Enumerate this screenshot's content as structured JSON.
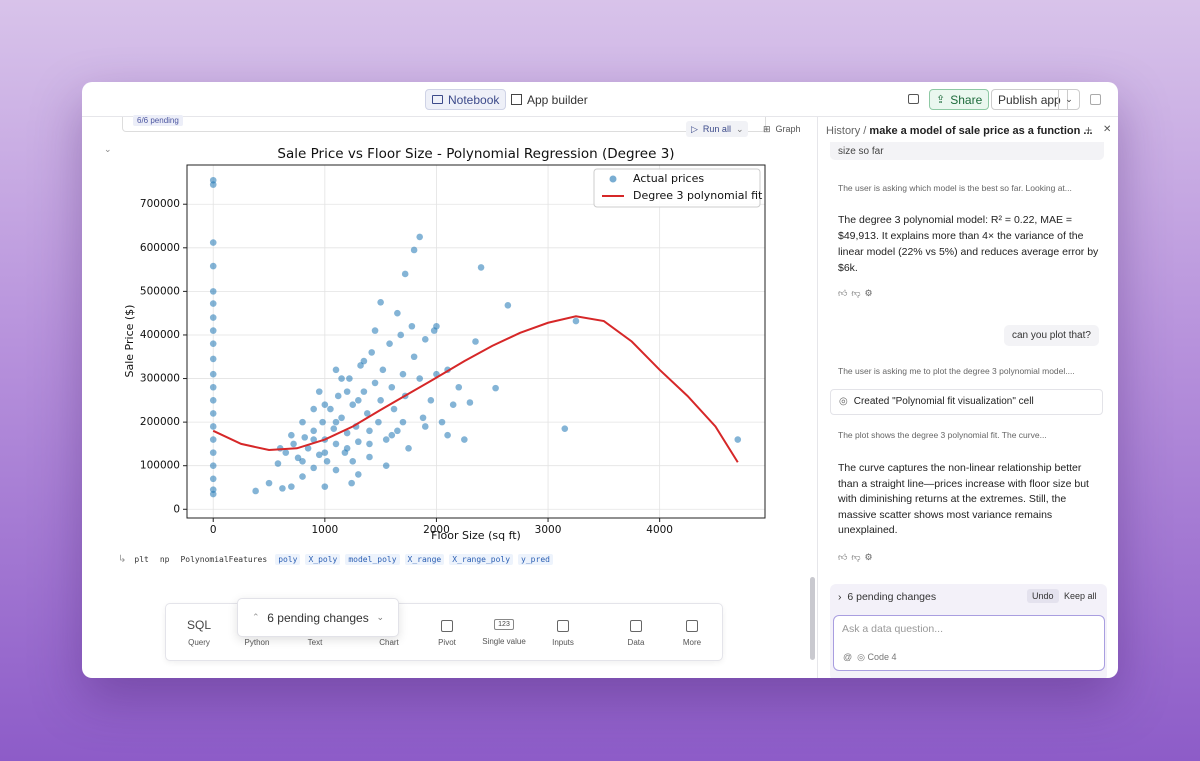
{
  "topbar": {
    "notebook_tab": "Notebook",
    "app_builder_tab": "App builder",
    "share": "Share",
    "publish": "Publish app"
  },
  "notebook": {
    "pending_badge": "6/6 pending",
    "run_all": "Run all",
    "graph": "Graph",
    "variables": [
      "plt",
      "np",
      "PolynomialFeatures",
      "poly",
      "X_poly",
      "model_poly",
      "X_range",
      "X_range_poly",
      "y_pred"
    ],
    "pending_popup": "6 pending changes",
    "cell_types": [
      {
        "icon": "SQL",
        "label": "Query"
      },
      {
        "label": "Python"
      },
      {
        "label": "Text"
      },
      {
        "label": "Chart"
      },
      {
        "label": "Pivot"
      },
      {
        "icon": "123",
        "label": "Single value"
      },
      {
        "label": "Inputs"
      },
      {
        "label": "Data"
      },
      {
        "label": "More"
      }
    ]
  },
  "chat": {
    "history": "History",
    "thread_title": "make a model of sale price as a function ...",
    "messages": [
      {
        "role": "user",
        "text": "size so far"
      },
      {
        "role": "thinking",
        "text": "The user is asking which model is the best so far. Looking at..."
      },
      {
        "role": "assistant",
        "text": "The degree 3 polynomial model: R² = 0.22, MAE = $49,913. It explains more than 4× the variance of the linear model (22% vs 5%) and reduces average error by $6k."
      },
      {
        "role": "user",
        "text": "can you plot that?"
      },
      {
        "role": "thinking",
        "text": "The user is asking me to plot the degree 3 polynomial model...."
      },
      {
        "role": "action",
        "text": "Created \"Polynomial fit visualization\" cell"
      },
      {
        "role": "thinking",
        "text": "The plot shows the degree 3 polynomial fit. The curve..."
      },
      {
        "role": "assistant",
        "text": "The curve captures the non-linear relationship better than a straight line—prices increase with floor size but with diminishing returns at the extremes. Still, the massive scatter shows most variance remains unexplained."
      }
    ],
    "pending": "6 pending changes",
    "undo": "Undo",
    "keep_all": "Keep all",
    "input_placeholder": "Ask a data question...",
    "model": "Code 4"
  },
  "chart_data": {
    "type": "scatter",
    "title": "Sale Price vs Floor Size - Polynomial Regression (Degree 3)",
    "x_label": "Floor Size (sq ft)",
    "y_label": "Sale Price ($)",
    "xlim": [
      -235,
      4944
    ],
    "ylim": [
      -20000,
      790000
    ],
    "xticks": [
      0,
      1000,
      2000,
      3000,
      4000
    ],
    "yticks": [
      0,
      100000,
      200000,
      300000,
      400000,
      500000,
      600000,
      700000
    ],
    "grid": true,
    "legend": "upper right",
    "series": [
      {
        "name": "Actual prices",
        "color": "#1f77b4",
        "x": [
          0,
          0,
          0,
          0,
          0,
          0,
          0,
          0,
          0,
          0,
          0,
          0,
          0,
          0,
          0,
          0,
          0,
          0,
          0,
          0,
          0,
          380,
          500,
          620,
          700,
          800,
          1000,
          900,
          1100,
          1240,
          1300,
          580,
          650,
          720,
          760,
          820,
          850,
          900,
          950,
          980,
          1000,
          1020,
          1050,
          1080,
          1100,
          1120,
          1150,
          1180,
          1200,
          1220,
          1250,
          1280,
          1300,
          1320,
          1350,
          1380,
          1400,
          1420,
          1450,
          1480,
          1500,
          1520,
          1550,
          1580,
          1600,
          1620,
          1650,
          1680,
          1700,
          1720,
          1750,
          1780,
          1800,
          1850,
          1880,
          1900,
          1950,
          1980,
          2000,
          2050,
          2100,
          2150,
          2200,
          2250,
          2300,
          2350,
          2100,
          1850,
          1800,
          1720,
          2400,
          2640,
          1500,
          3250,
          3150,
          4700,
          2530,
          1200,
          900,
          1350,
          1100,
          1450,
          1650,
          2000,
          1000,
          800,
          700,
          600,
          1250,
          1550,
          950,
          1150,
          1400,
          1700,
          1900,
          1300,
          800,
          1000,
          1200,
          1400,
          1600,
          1100,
          900
        ],
        "values": [
          755000,
          745000,
          612000,
          558000,
          500000,
          472000,
          440000,
          410000,
          380000,
          345000,
          310000,
          280000,
          250000,
          220000,
          190000,
          160000,
          130000,
          100000,
          70000,
          45000,
          35000,
          42000,
          60000,
          48000,
          52000,
          75000,
          52000,
          95000,
          90000,
          60000,
          80000,
          105000,
          130000,
          150000,
          118000,
          165000,
          140000,
          180000,
          125000,
          200000,
          160000,
          110000,
          230000,
          185000,
          150000,
          260000,
          210000,
          130000,
          175000,
          300000,
          240000,
          190000,
          155000,
          330000,
          270000,
          220000,
          120000,
          360000,
          290000,
          200000,
          250000,
          320000,
          160000,
          380000,
          280000,
          230000,
          180000,
          400000,
          310000,
          260000,
          140000,
          420000,
          350000,
          300000,
          210000,
          390000,
          250000,
          410000,
          310000,
          200000,
          320000,
          240000,
          280000,
          160000,
          245000,
          385000,
          170000,
          625000,
          595000,
          540000,
          555000,
          468000,
          475000,
          432000,
          185000,
          160000,
          278000,
          270000,
          230000,
          340000,
          320000,
          410000,
          450000,
          420000,
          240000,
          200000,
          170000,
          140000,
          110000,
          100000,
          270000,
          300000,
          180000,
          200000,
          190000,
          250000,
          110000,
          130000,
          140000,
          150000,
          170000,
          200000,
          160000
        ]
      },
      {
        "name": "Degree 3 polynomial fit",
        "color": "#d62728",
        "type": "line",
        "x": [
          0,
          250,
          500,
          750,
          1000,
          1250,
          1500,
          1750,
          2000,
          2250,
          2500,
          2750,
          3000,
          3250,
          3500,
          3750,
          4000,
          4250,
          4500,
          4700
        ],
        "values": [
          180000,
          150000,
          136000,
          140000,
          160000,
          190000,
          228000,
          265000,
          302000,
          340000,
          375000,
          405000,
          428000,
          443000,
          432000,
          385000,
          320000,
          260000,
          190000,
          108000
        ]
      }
    ]
  }
}
